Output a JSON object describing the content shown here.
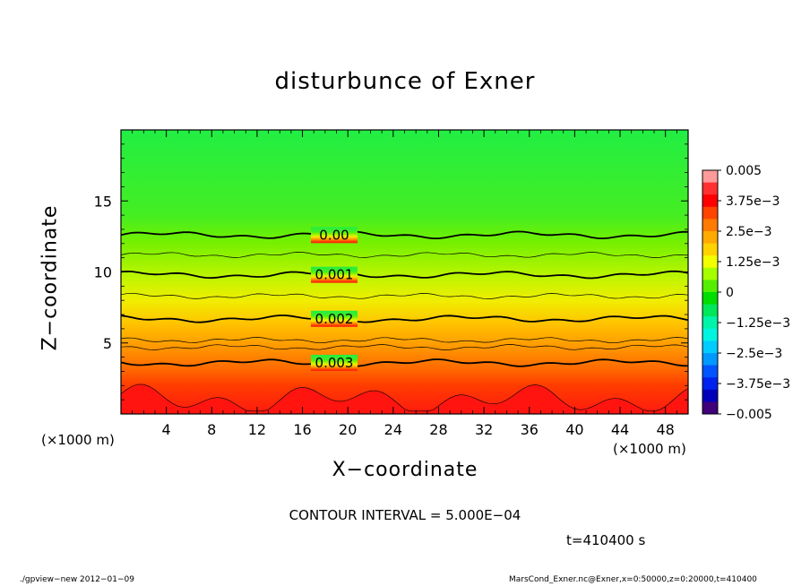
{
  "chart_data": {
    "type": "heatmap",
    "title": "disturbunce of Exner",
    "xlabel": "X−coordinate",
    "ylabel": "Z−coordinate",
    "x_unit_left": "(×1000 m)",
    "x_unit_right": "(×1000 m)",
    "xlim": [
      0,
      50
    ],
    "ylim": [
      0,
      20
    ],
    "x_ticks": [
      4,
      8,
      12,
      16,
      20,
      24,
      28,
      32,
      36,
      40,
      44,
      48
    ],
    "y_ticks": [
      5,
      10,
      15
    ],
    "colorbar": {
      "labels": [
        "0.005",
        "3.75e−3",
        "2.5e−3",
        "1.25e−3",
        "0",
        "−1.25e−3",
        "−2.5e−3",
        "−3.75e−3",
        "−0.005"
      ],
      "range": [
        -0.005,
        0.005
      ],
      "colors": [
        "#ff9a9a",
        "#ff3030",
        "#ff0000",
        "#ff4400",
        "#ff7a00",
        "#ffaa00",
        "#ffd200",
        "#f2ff00",
        "#a6ff00",
        "#55ee00",
        "#00dd00",
        "#00e85a",
        "#00f5a8",
        "#00f5e0",
        "#00ccff",
        "#0099ff",
        "#0055ff",
        "#0022ee",
        "#0000bb",
        "#40007a"
      ]
    },
    "contour_lines": [
      {
        "z": 12.6,
        "label": "0.00"
      },
      {
        "z": 9.8,
        "label": "0.001"
      },
      {
        "z": 6.7,
        "label": "0.002"
      },
      {
        "z": 3.6,
        "label": "0.003"
      }
    ],
    "contour_interval_text": "CONTOUR INTERVAL = 5.000E−04",
    "time_text": "t=410400 s"
  },
  "footer": {
    "left": "./gpview−new  2012−01−09",
    "right": "MarsCond_Exner.nc@Exner,x=0:50000,z=0:20000,t=410400"
  }
}
